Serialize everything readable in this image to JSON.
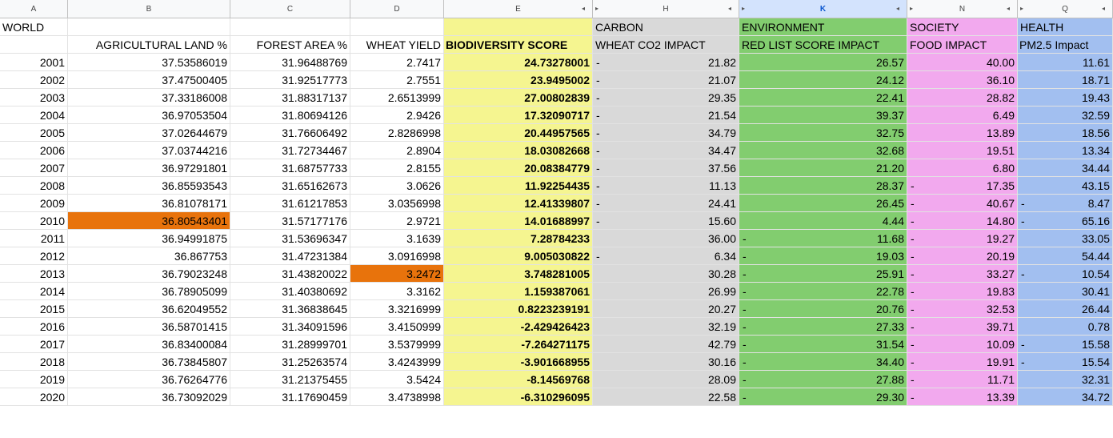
{
  "columns": [
    "A",
    "B",
    "C",
    "D",
    "E",
    "H",
    "K",
    "N",
    "Q"
  ],
  "colors": {
    "yellow": "#f5f590",
    "grey": "#d9d9d9",
    "green": "#82cd6f",
    "pink": "#f2a9ee",
    "blue": "#a2bff0",
    "highlight": "#e8730c",
    "selected_header": "#d3e3fd"
  },
  "group_row": [
    "WORLD",
    "",
    "",
    "",
    "",
    "CARBON",
    "ENVIRONMENT",
    "SOCIETY",
    "HEALTH"
  ],
  "header_row": [
    "",
    "AGRICULTURAL LAND %",
    "FOREST AREA %",
    "WHEAT YIELD",
    "BIODIVERSITY SCORE",
    "WHEAT CO2 IMPACT",
    "RED LIST SCORE IMPACT",
    "FOOD IMPACT",
    "PM2.5 Impact"
  ],
  "rows": [
    [
      "2001",
      "37.53586019",
      "31.96488769",
      "2.7417",
      "24.73278001",
      "21.82",
      "26.57",
      "40.00",
      "11.61"
    ],
    [
      "2002",
      "37.47500405",
      "31.92517773",
      "2.7551",
      "23.9495002",
      "21.07",
      "24.12",
      "36.10",
      "18.71"
    ],
    [
      "2003",
      "37.33186008",
      "31.88317137",
      "2.6513999",
      "27.00802839",
      "29.35",
      "22.41",
      "28.82",
      "19.43"
    ],
    [
      "2004",
      "36.97053504",
      "31.80694126",
      "2.9426",
      "17.32090717",
      "21.54",
      "39.37",
      "6.49",
      "32.59"
    ],
    [
      "2005",
      "37.02644679",
      "31.76606492",
      "2.8286998",
      "20.44957565",
      "34.79",
      "32.75",
      "13.89",
      "18.56"
    ],
    [
      "2006",
      "37.03744216",
      "31.72734467",
      "2.8904",
      "18.03082668",
      "34.47",
      "32.68",
      "19.51",
      "13.34"
    ],
    [
      "2007",
      "36.97291801",
      "31.68757733",
      "2.8155",
      "20.08384779",
      "37.56",
      "21.20",
      "6.80",
      "34.44"
    ],
    [
      "2008",
      "36.85593543",
      "31.65162673",
      "3.0626",
      "11.92254435",
      "11.13",
      "28.37",
      "17.35",
      "43.15"
    ],
    [
      "2009",
      "36.81078171",
      "31.61217853",
      "3.0356998",
      "12.41339807",
      "24.41",
      "26.45",
      "40.67",
      "8.47"
    ],
    [
      "2010",
      "36.80543401",
      "31.57177176",
      "2.9721",
      "14.01688997",
      "15.60",
      "4.44",
      "14.80",
      "65.16"
    ],
    [
      "2011",
      "36.94991875",
      "31.53696347",
      "3.1639",
      "7.28784233",
      "36.00",
      "11.68",
      "19.27",
      "33.05"
    ],
    [
      "2012",
      "36.867753",
      "31.47231384",
      "3.0916998",
      "9.005030822",
      "6.34",
      "19.03",
      "20.19",
      "54.44"
    ],
    [
      "2013",
      "36.79023248",
      "31.43820022",
      "3.2472",
      "3.748281005",
      "30.28",
      "25.91",
      "33.27",
      "10.54"
    ],
    [
      "2014",
      "36.78905099",
      "31.40380692",
      "3.3162",
      "1.159387061",
      "26.99",
      "22.78",
      "19.83",
      "30.41"
    ],
    [
      "2015",
      "36.62049552",
      "31.36838645",
      "3.3216999",
      "0.8223239191",
      "20.27",
      "20.76",
      "32.53",
      "26.44"
    ],
    [
      "2016",
      "36.58701415",
      "31.34091596",
      "3.4150999",
      "-2.429426423",
      "32.19",
      "27.33",
      "39.71",
      "0.78"
    ],
    [
      "2017",
      "36.83400084",
      "31.28999701",
      "3.5379999",
      "-7.264271175",
      "42.79",
      "31.54",
      "10.09",
      "15.58"
    ],
    [
      "2018",
      "36.73845807",
      "31.25263574",
      "3.4243999",
      "-3.901668955",
      "30.16",
      "34.40",
      "19.91",
      "15.54"
    ],
    [
      "2019",
      "36.76264776",
      "31.21375455",
      "3.5424",
      "-8.14569768",
      "28.09",
      "27.88",
      "11.71",
      "32.31"
    ],
    [
      "2020",
      "36.73092029",
      "31.17690459",
      "3.4738998",
      "-6.310296095",
      "22.58",
      "29.30",
      "13.39",
      "34.72"
    ]
  ],
  "dash_marks": {
    "H": [
      0,
      1,
      2,
      3,
      4,
      5,
      6,
      7,
      8,
      9,
      11
    ],
    "K": [
      10,
      11,
      12,
      13,
      14,
      15,
      16,
      17,
      18,
      19
    ],
    "N": [
      7,
      8,
      9,
      10,
      11,
      12,
      13,
      14,
      15,
      16,
      17,
      18,
      19
    ],
    "Q": [
      8,
      9,
      12,
      16,
      17
    ]
  },
  "dash_char": "-",
  "expand_icon_left": "◂",
  "expand_icon_right": "▸"
}
